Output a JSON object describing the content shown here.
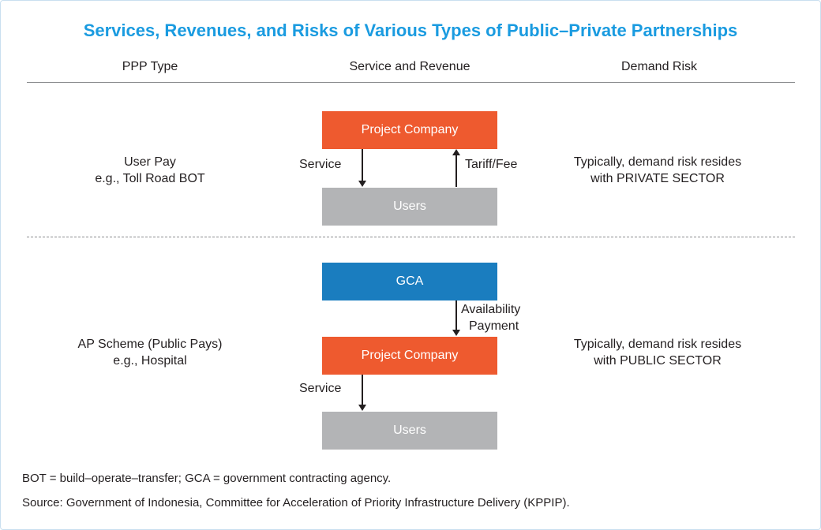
{
  "title": "Services, Revenues, and Risks of Various Types of Public–Private Partnerships",
  "headers": {
    "ppp_type": "PPP Type",
    "service_revenue": "Service and Revenue",
    "demand_risk": "Demand Risk"
  },
  "rows": [
    {
      "type_line1": "User Pay",
      "type_line2": "e.g., Toll Road BOT",
      "top_box": "Project Company",
      "bottom_box": "Users",
      "left_flow": "Service",
      "right_flow": "Tariff/Fee",
      "risk_line1": "Typically, demand risk resides",
      "risk_line2": "with  PRIVATE SECTOR"
    },
    {
      "type_line1": "AP  Scheme (Public Pays)",
      "type_line2": "e.g., Hospital",
      "top_box": "GCA",
      "middle_box": "Project Company",
      "bottom_box": "Users",
      "payment_line1": "Availability",
      "payment_line2": "Payment",
      "service_flow": "Service",
      "risk_line1": "Typically, demand risk resides",
      "risk_line2": "with  PUBLIC SECTOR"
    }
  ],
  "footnote": "BOT = build–operate–transfer; GCA = government contracting agency.",
  "source": "Source: Government of Indonesia, Committee for Acceleration of Priority Infrastructure Delivery (KPPIP).",
  "colors": {
    "title": "#1a9be0",
    "project_company": "#ee5a2f",
    "gca": "#1a7dbf",
    "users": "#b3b4b6"
  }
}
